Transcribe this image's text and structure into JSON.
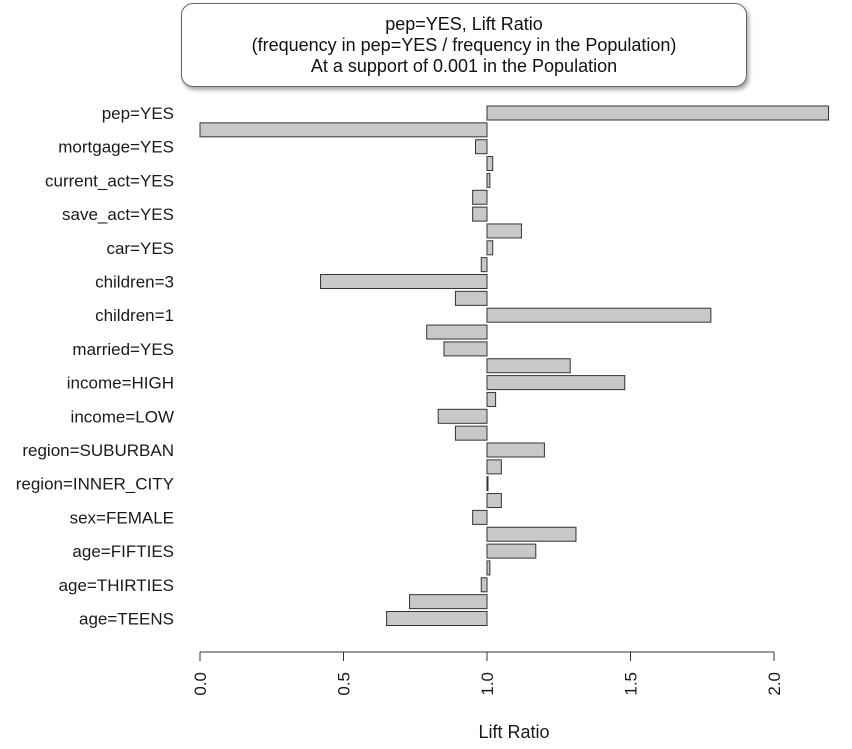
{
  "chart_data": {
    "type": "bar",
    "orientation": "horizontal",
    "title_lines": [
      "pep=YES, Lift Ratio",
      "(frequency in pep=YES / frequency in the Population)",
      "At a support of 0.001 in the Population"
    ],
    "xlabel": "Lift Ratio",
    "ylabel": "",
    "xlim": [
      0,
      2.2
    ],
    "baseline": 1.0,
    "x_ticks": [
      "0.0",
      "0.5",
      "1.0",
      "1.5",
      "2.0"
    ],
    "x_tick_values": [
      0,
      0.5,
      1.0,
      1.5,
      2.0
    ],
    "grid": false,
    "bar_fill": "#c8c8c8",
    "bar_stroke": "#333333",
    "labeled_categories": [
      "pep=YES",
      "mortgage=YES",
      "current_act=YES",
      "save_act=YES",
      "car=YES",
      "children=3",
      "children=1",
      "married=YES",
      "income=HIGH",
      "income=LOW",
      "region=SUBURBAN",
      "region=INNER_CITY",
      "sex=FEMALE",
      "age=FIFTIES",
      "age=THIRTIES",
      "age=TEENS"
    ],
    "values": [
      2.19,
      0.0,
      0.96,
      1.02,
      1.01,
      0.95,
      0.95,
      1.12,
      1.02,
      0.98,
      0.42,
      0.89,
      1.78,
      0.79,
      0.85,
      1.29,
      1.48,
      1.03,
      0.83,
      0.89,
      1.2,
      1.05,
      1.0,
      1.05,
      0.95,
      1.31,
      1.17,
      1.01,
      0.98,
      0.73,
      0.65
    ]
  }
}
